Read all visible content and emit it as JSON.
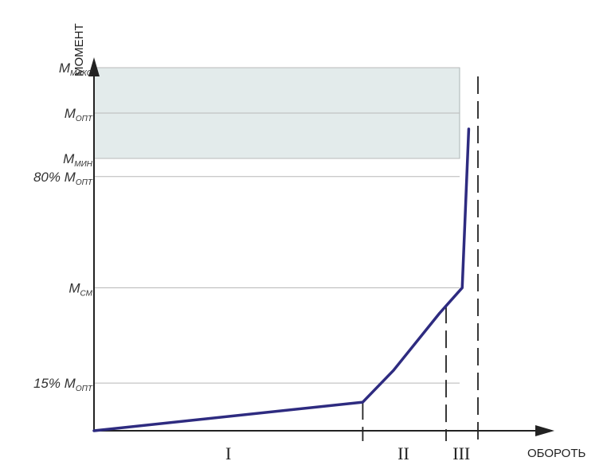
{
  "chart_data": {
    "type": "line",
    "title": "",
    "xlabel": "ОБОРОТЬ",
    "ylabel": "МОМЕНТ",
    "y_levels": [
      {
        "key": "m_maks",
        "main": "M",
        "sub": "МАКС",
        "value": 1.143
      },
      {
        "key": "m_opt",
        "main": "M",
        "sub": "ОПТ",
        "value": 1.0
      },
      {
        "key": "m_min",
        "main": "M",
        "sub": "МИН",
        "value": 0.857
      },
      {
        "key": "p80",
        "main": "80% M",
        "sub": "ОПТ",
        "value": 0.8
      },
      {
        "key": "m_sm",
        "main": "M",
        "sub": "СМ",
        "value": 0.45
      },
      {
        "key": "p15",
        "main": "15% M",
        "sub": "ОПТ",
        "value": 0.15
      }
    ],
    "band": {
      "from": 0.857,
      "to": 1.143,
      "color": "#e3ebeb"
    },
    "series": [
      {
        "x": [
          0,
          0.7,
          0.78,
          0.9,
          0.959,
          0.976
        ],
        "y": [
          0.0,
          0.09,
          0.19,
          0.37,
          0.45,
          0.95
        ],
        "color": "#2e2b80"
      }
    ],
    "boundaries": [
      0.7,
      0.917,
      1.0
    ],
    "zones": [
      {
        "label": "I",
        "x": 0.35
      },
      {
        "label": "II",
        "x": 0.806
      },
      {
        "label": "III",
        "x": 0.957
      }
    ],
    "xlim": [
      0,
      1.0
    ],
    "ylim": [
      0,
      1.4
    ]
  }
}
